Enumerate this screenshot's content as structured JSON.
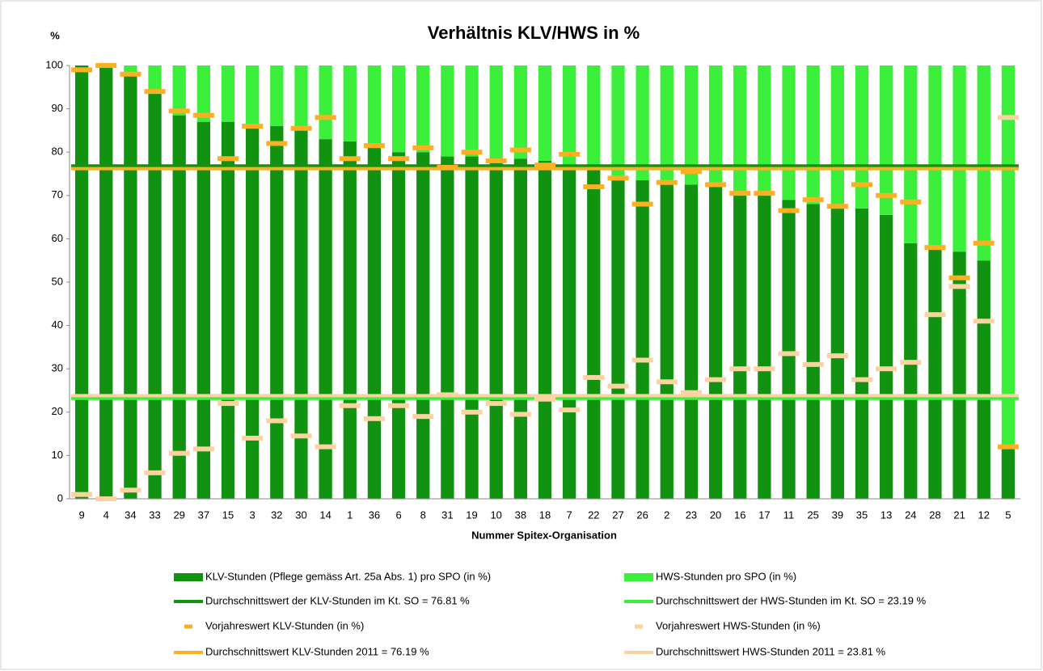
{
  "chart_data": {
    "type": "bar",
    "stacked": true,
    "title": "Verhältnis KLV/HWS in %",
    "y_unit_label": "%",
    "x_label": "Nummer Spitex-Organisation",
    "categories": [
      "9",
      "4",
      "34",
      "33",
      "29",
      "37",
      "15",
      "3",
      "32",
      "30",
      "14",
      "1",
      "36",
      "6",
      "8",
      "31",
      "19",
      "10",
      "38",
      "18",
      "7",
      "22",
      "27",
      "26",
      "2",
      "23",
      "20",
      "16",
      "17",
      "11",
      "25",
      "39",
      "35",
      "13",
      "24",
      "28",
      "21",
      "12",
      "5"
    ],
    "ylim": [
      0,
      100
    ],
    "yticks": [
      0,
      10,
      20,
      30,
      40,
      50,
      60,
      70,
      80,
      90,
      100
    ],
    "grid": false,
    "series": [
      {
        "name": "KLV-Stunden (Pflege gemäss Art. 25a Abs. 1) pro SPO (in %)",
        "kind": "bar",
        "color": "#119311",
        "values": [
          100,
          100,
          98,
          93.5,
          88.5,
          87,
          87,
          86,
          86,
          85,
          83,
          82.5,
          81,
          80,
          80,
          79,
          79,
          78,
          78.5,
          78,
          76.5,
          76,
          73.5,
          73.5,
          73.5,
          72.5,
          72,
          70,
          70,
          69,
          68,
          67.5,
          67,
          65.5,
          59,
          58,
          57,
          55,
          11.5
        ]
      },
      {
        "name": "HWS-Stunden pro SPO (in %)",
        "kind": "bar",
        "color": "#3bef3b",
        "values": [
          0,
          0,
          2,
          6.5,
          11.5,
          13,
          13,
          14,
          14,
          15,
          17,
          17.5,
          19,
          20,
          20,
          21,
          21,
          22,
          21.5,
          22,
          23.5,
          24,
          26.5,
          26.5,
          26.5,
          27.5,
          28,
          30,
          30,
          31,
          32,
          32.5,
          33,
          34.5,
          41,
          42,
          43,
          45,
          88.5
        ]
      },
      {
        "name": "Vorjahreswert KLV-Stunden (in %)",
        "kind": "marker",
        "color": "#fbb023",
        "values": [
          99,
          100,
          98,
          94,
          89.5,
          88.5,
          78.5,
          86,
          82,
          85.5,
          88,
          78.5,
          81.5,
          78.5,
          81,
          76.5,
          80,
          78,
          80.5,
          77,
          79.5,
          72,
          74,
          68,
          73,
          75.5,
          72.5,
          70.5,
          70.5,
          66.5,
          69,
          67.5,
          72.5,
          70,
          68.5,
          58,
          51,
          59,
          12
        ]
      },
      {
        "name": "Vorjahreswert HWS-Stunden (in %)",
        "kind": "marker",
        "color": "#fad3a0",
        "values": [
          1,
          0,
          2,
          6,
          10.5,
          11.5,
          22,
          14,
          18,
          14.5,
          12,
          21.5,
          18.5,
          21.5,
          19,
          24,
          20,
          22,
          19.5,
          23,
          20.5,
          28,
          26,
          32,
          27,
          24.5,
          27.5,
          30,
          30,
          33.5,
          31,
          33,
          27.5,
          30,
          31.5,
          42.5,
          49,
          41,
          88
        ]
      }
    ],
    "reference_lines": [
      {
        "name": "Durchschnittswert der KLV-Stunden im Kt. SO = 76.81 %",
        "color": "#119311",
        "value": 76.81
      },
      {
        "name": "Durchschnittswert der HWS-Stunden im Kt. SO = 23.19 %",
        "color": "#3bef3b",
        "value": 23.19
      },
      {
        "name": "Durchschnittswert KLV-Stunden 2011 = 76.19 %",
        "color": "#fbb023",
        "value": 76.19
      },
      {
        "name": "Durchschnittswert HWS-Stunden 2011 = 23.81 %",
        "color": "#fad3a0",
        "value": 23.81
      }
    ]
  }
}
